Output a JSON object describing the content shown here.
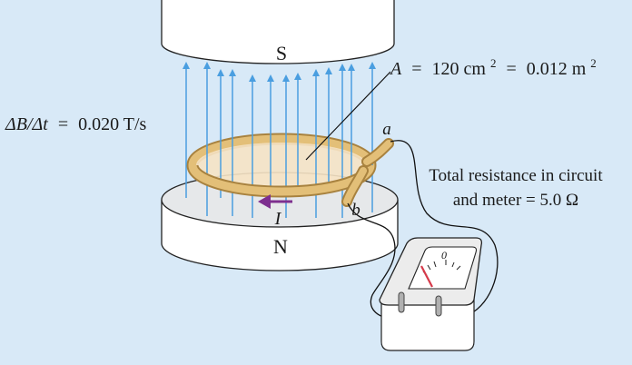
{
  "labels": {
    "south_pole": "S",
    "north_pole": "N",
    "rate_var": "ΔB/Δt",
    "rate_eq": "=",
    "rate_value": "0.020 T/s",
    "area_var": "A",
    "area_eq1": "=",
    "area_value1": "120 cm",
    "area_eq2": "=",
    "area_value2": "0.012 m",
    "area_exp": "2",
    "terminal_a": "a",
    "terminal_b": "b",
    "current": "I",
    "resistance_line1": "Total resistance in circuit",
    "resistance_line2": "and meter = 5.0 Ω",
    "meter_zero": "0"
  },
  "colors": {
    "background": "#d8e9f7",
    "field_lines": "#4a9ee0",
    "coil": "#e3bf78",
    "coil_dark": "#a8823f",
    "current_arrow": "#7d2f8f",
    "needle": "#d63a4a"
  }
}
